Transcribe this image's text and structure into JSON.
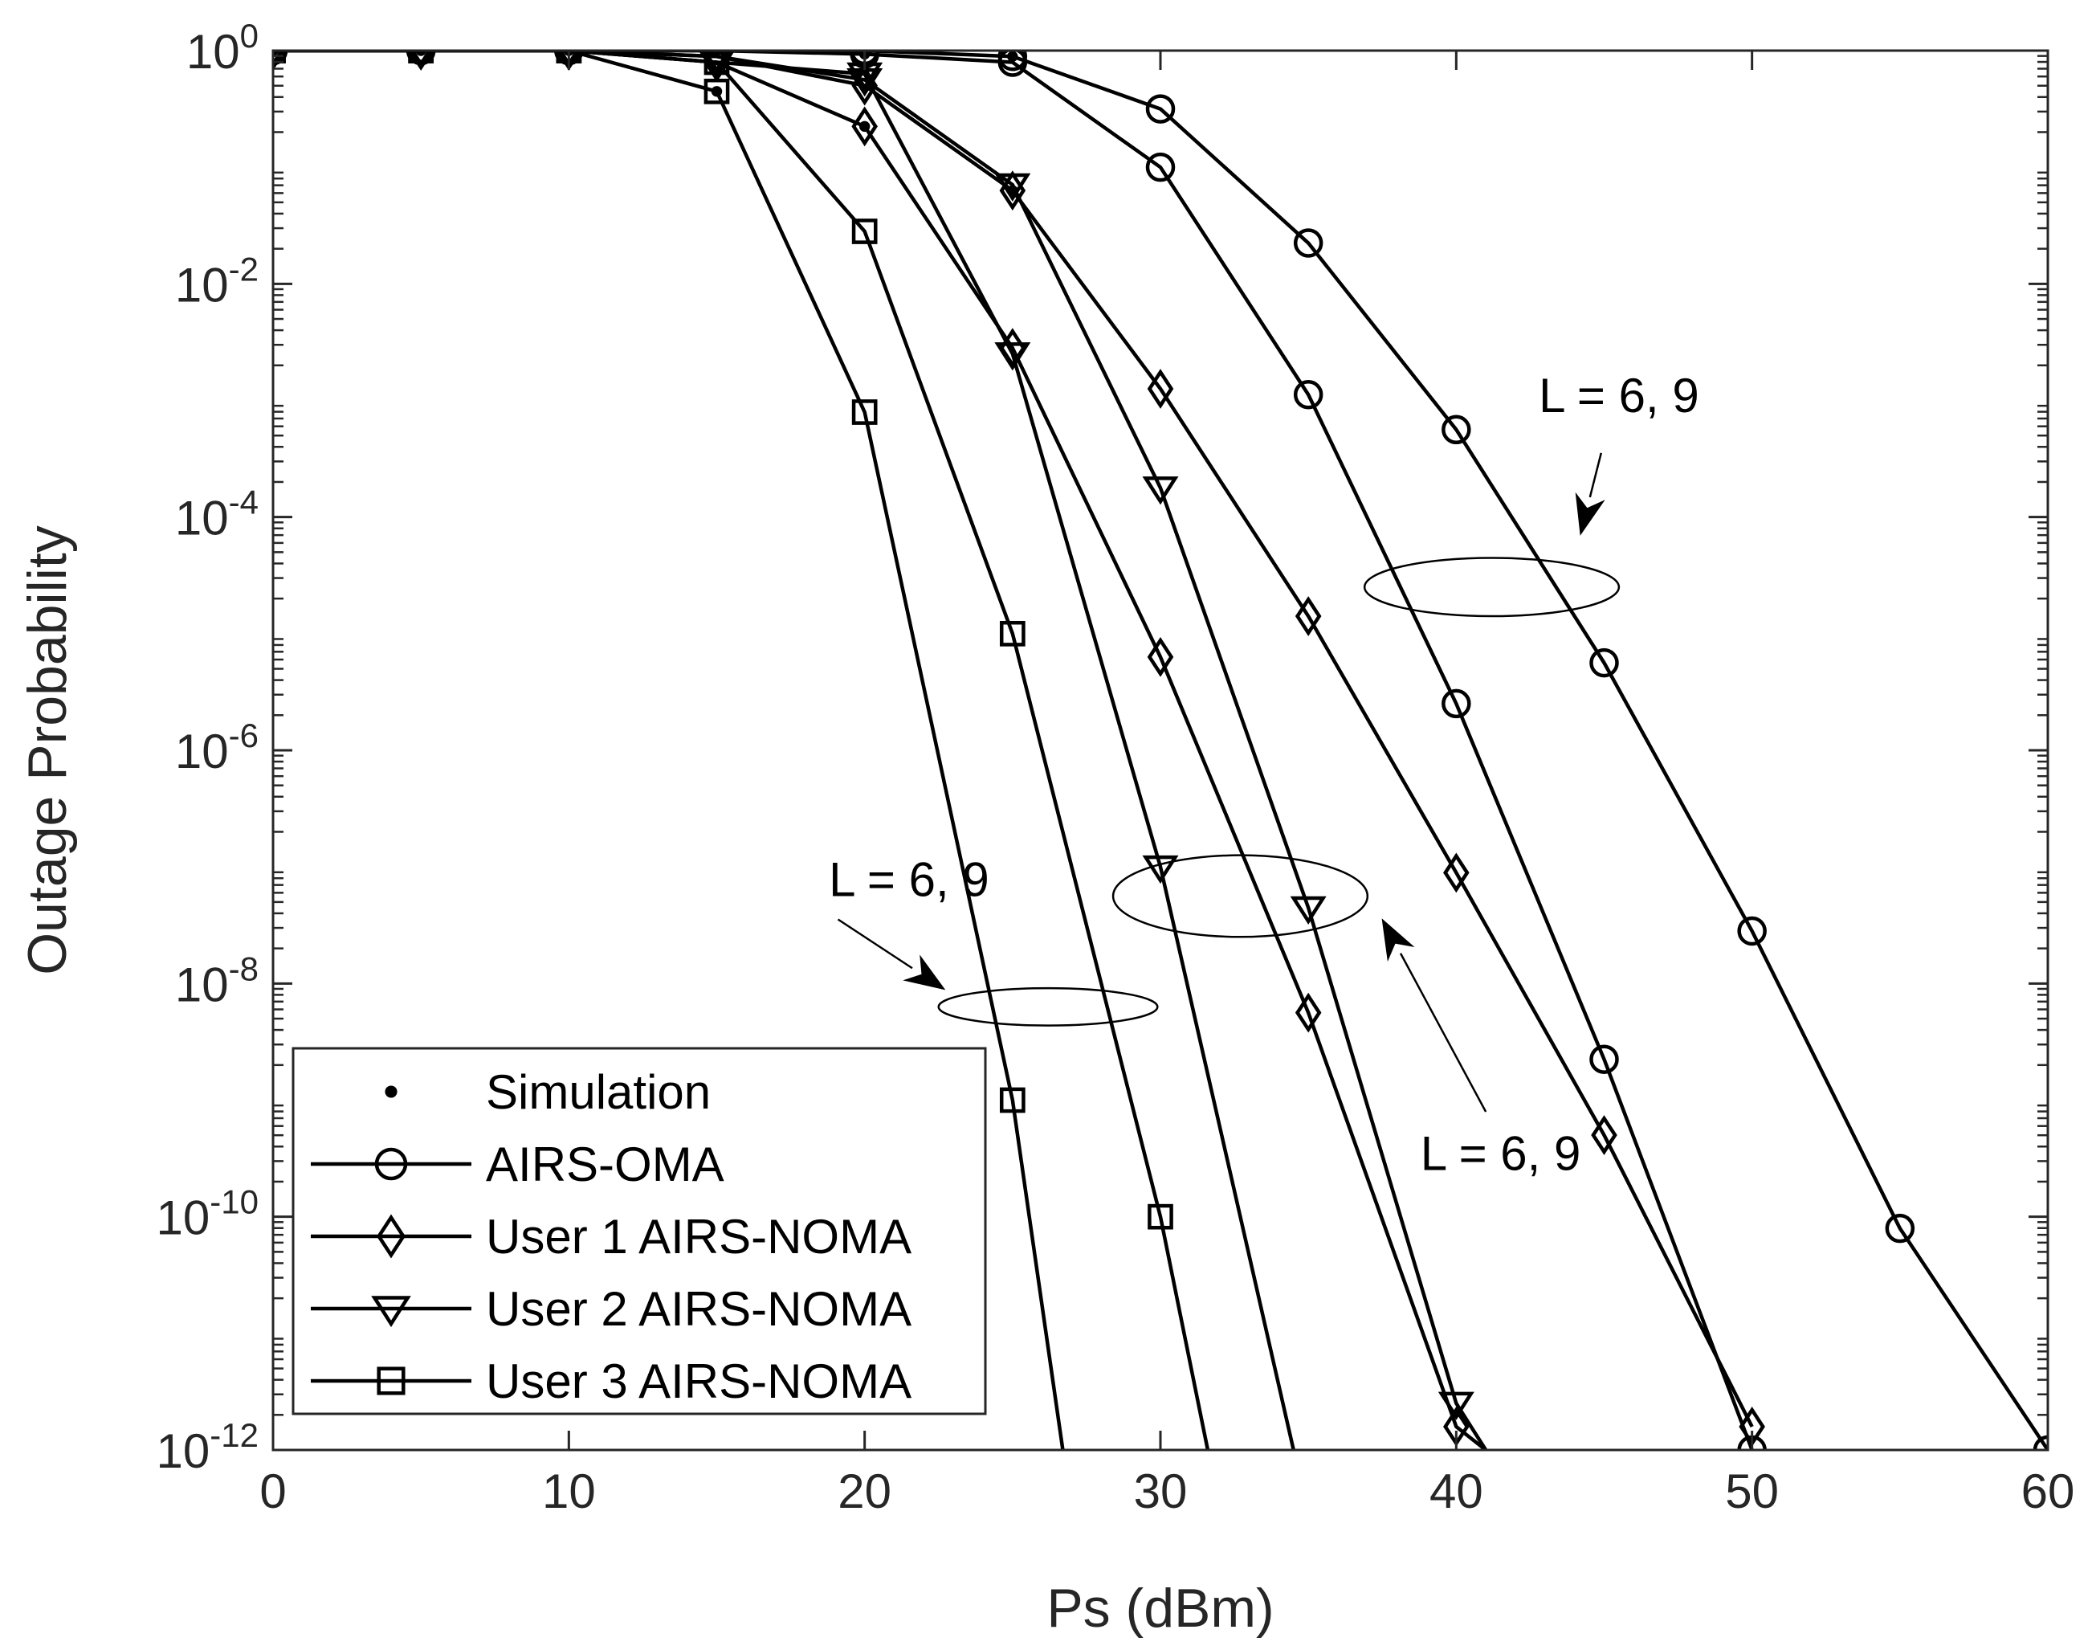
{
  "chart_data": {
    "type": "line",
    "title": "",
    "xlabel": "Ps (dBm)",
    "ylabel": "Outage Probability",
    "xlim": [
      0,
      60
    ],
    "ylim_exponent": [
      -12,
      0
    ],
    "y_scale": "log",
    "grid": false,
    "legend_position": "bottom-left",
    "x_ticks": [
      "0",
      "10",
      "20",
      "30",
      "40",
      "50",
      "60"
    ],
    "y_tick_base": "10",
    "y_tick_exponents": [
      "0",
      "-2",
      "-4",
      "-6",
      "-8",
      "-10",
      "-12"
    ],
    "legend": [
      {
        "label": "Simulation",
        "marker": "dot"
      },
      {
        "label": "AIRS-OMA",
        "marker": "circle"
      },
      {
        "label": "User 1 AIRS-NOMA",
        "marker": "diamond"
      },
      {
        "label": "User 2 AIRS-NOMA",
        "marker": "triangle-down"
      },
      {
        "label": "User 3 AIRS-NOMA",
        "marker": "square"
      }
    ],
    "series": [
      {
        "marker": "circle",
        "x": [
          0,
          5,
          10,
          15,
          20,
          25,
          30,
          35,
          40,
          45,
          50,
          55,
          60
        ],
        "log10_y": [
          0,
          0,
          0,
          0,
          0,
          -0.05,
          -0.5,
          -1.65,
          -3.25,
          -5.25,
          -7.55,
          -10.1,
          -12.0
        ]
      },
      {
        "marker": "circle",
        "x": [
          0,
          5,
          10,
          15,
          20,
          25,
          30,
          35,
          40,
          45,
          50
        ],
        "log10_y": [
          0,
          0,
          0,
          0,
          -0.03,
          -0.1,
          -1.0,
          -2.95,
          -5.6,
          -8.65,
          -12.0
        ]
      },
      {
        "marker": "diamond",
        "x": [
          0,
          5,
          10,
          15,
          20,
          25,
          30,
          35,
          40,
          45,
          50
        ],
        "log10_y": [
          0,
          0,
          0,
          -0.05,
          -0.3,
          -1.2,
          -2.9,
          -4.85,
          -7.05,
          -9.3,
          -11.8
        ]
      },
      {
        "marker": "diamond",
        "x": [
          0,
          5,
          10,
          15,
          20,
          25,
          30,
          35,
          40,
          41
        ],
        "log10_y": [
          0,
          0,
          0,
          -0.1,
          -0.65,
          -2.55,
          -5.2,
          -8.25,
          -11.8,
          -12.0
        ]
      },
      {
        "marker": "triangle-down",
        "x": [
          0,
          5,
          10,
          15,
          20,
          25,
          30,
          35,
          40,
          41
        ],
        "log10_y": [
          0,
          0,
          0,
          -0.05,
          -0.25,
          -1.15,
          -3.75,
          -7.35,
          -11.6,
          -12.0
        ]
      },
      {
        "marker": "triangle-down",
        "x": [
          0,
          5,
          10,
          15,
          20,
          25,
          30,
          34.5
        ],
        "log10_y": [
          0,
          0,
          0,
          -0.1,
          -0.2,
          -2.6,
          -7.0,
          -12.0
        ]
      },
      {
        "marker": "square",
        "x": [
          0,
          5,
          10,
          15,
          20,
          25,
          30,
          31.6
        ],
        "log10_y": [
          0,
          0,
          0,
          -0.1,
          -1.55,
          -5.0,
          -10.0,
          -12.0
        ]
      },
      {
        "marker": "square",
        "x": [
          0,
          5,
          10,
          15,
          20,
          25,
          26.7
        ],
        "log10_y": [
          0,
          0,
          0,
          -0.35,
          -3.1,
          -9.0,
          -12.0
        ]
      }
    ],
    "simulation_points": [
      {
        "x": 0,
        "log10_y": 0
      },
      {
        "x": 5,
        "log10_y": 0
      },
      {
        "x": 10,
        "log10_y": 0
      },
      {
        "x": 15,
        "log10_y": 0
      },
      {
        "x": 15,
        "log10_y": -0.35
      },
      {
        "x": 20,
        "log10_y": -0.03
      },
      {
        "x": 20,
        "log10_y": -0.65
      },
      {
        "x": 25,
        "log10_y": -0.05
      },
      {
        "x": 25,
        "log10_y": -1.2
      }
    ],
    "annotations": [
      {
        "text": "L = 6, 9",
        "x": 45.5,
        "log10_y": -3.1,
        "ellipse": {
          "cx": 41.2,
          "cy": -4.6,
          "rx": 4.3,
          "ry": 0.25
        },
        "arrow_from": [
          44.9,
          -3.45
        ],
        "arrow_to": [
          44.2,
          -4.15
        ]
      },
      {
        "text": "L = 6, 9",
        "x": 21.5,
        "log10_y": -7.25,
        "ellipse": {
          "cx": 26.2,
          "cy": -8.2,
          "rx": 3.7,
          "ry": 0.16
        },
        "arrow_from": [
          19.1,
          -7.45
        ],
        "arrow_to": [
          22.7,
          -8.05
        ]
      },
      {
        "text": "L = 6, 9",
        "x": 41.5,
        "log10_y": -9.6,
        "ellipse": {
          "cx": 32.7,
          "cy": -7.25,
          "rx": 4.3,
          "ry": 0.35
        },
        "arrow_from": [
          41.0,
          -9.1
        ],
        "arrow_to": [
          37.5,
          -7.45
        ]
      }
    ]
  }
}
